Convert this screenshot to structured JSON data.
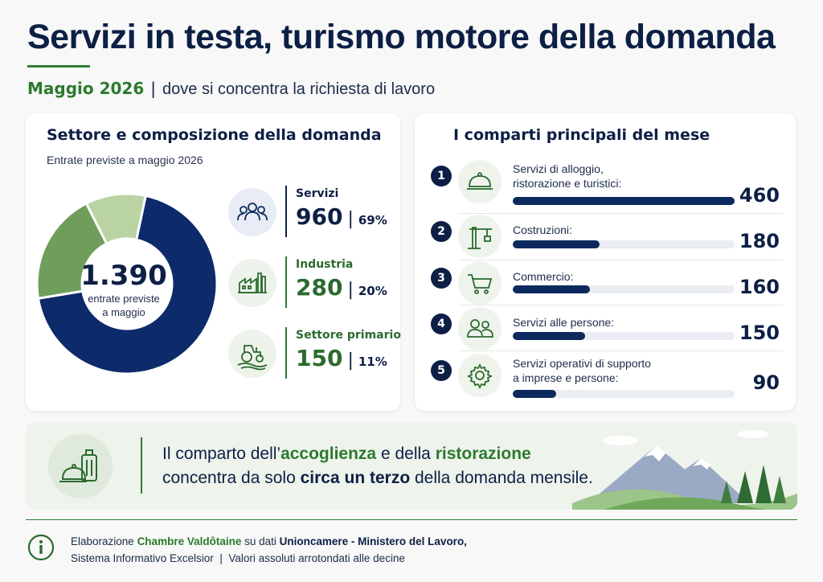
{
  "header": {
    "title": "Servizi in testa, turismo motore della domanda",
    "period": "Maggio 2026",
    "separator": "|",
    "tagline": "dove si concentra la richiesta di lavoro"
  },
  "composition": {
    "title": "Settore e composizione della domanda",
    "subtitle": "Entrate previste a maggio 2026",
    "total_value": "1.390",
    "total_label_line1": "entrate previste",
    "total_label_line2": "a maggio",
    "segments": [
      {
        "name": "Servizi",
        "value": "960",
        "pct": "69%",
        "icon": "people-icon"
      },
      {
        "name": "Industria",
        "value": "280",
        "pct": "20%",
        "icon": "factory-icon"
      },
      {
        "name": "Settore primario",
        "value": "150",
        "pct": "11%",
        "icon": "tractor-icon"
      }
    ]
  },
  "sectors": {
    "title": "I comparti principali del mese",
    "items": [
      {
        "rank": "1",
        "label_line1": "Servizi di alloggio,",
        "label_line2": "ristorazione e turistici:",
        "value": "460",
        "icon": "cloche-icon"
      },
      {
        "rank": "2",
        "label_line1": "Costruzioni:",
        "label_line2": "",
        "value": "180",
        "icon": "crane-icon"
      },
      {
        "rank": "3",
        "label_line1": "Commercio:",
        "label_line2": "",
        "value": "160",
        "icon": "cart-icon"
      },
      {
        "rank": "4",
        "label_line1": "Servizi alle persone:",
        "label_line2": "",
        "value": "150",
        "icon": "persons-icon"
      },
      {
        "rank": "5",
        "label_line1": "Servizi operativi di supporto",
        "label_line2": "a imprese e persone:",
        "value": "90",
        "icon": "gear-icon"
      }
    ]
  },
  "banner": {
    "t1": "Il comparto dell’",
    "t2": "accoglienza",
    "t3": " e della ",
    "t4": "ristorazione",
    "t5": "concentra da solo ",
    "t6": "circa un terzo",
    "t7": " della domanda mensile.",
    "icon": "luggage-icon"
  },
  "footer": {
    "f1": "Elaborazione ",
    "f2": "Chambre Valdôtaine",
    "f3": " su dati ",
    "f4": "Unioncamere - Ministero del Lavoro,",
    "f5": "Sistema Informativo Excelsior",
    "f6": "  |  ",
    "f7": "Valori assoluti arrotondati alle decine",
    "icon": "info-icon"
  },
  "chart_data": [
    {
      "type": "pie",
      "categories": [
        "Servizi",
        "Industria",
        "Settore primario"
      ],
      "values": [
        960,
        280,
        150
      ],
      "percentages": [
        69,
        20,
        11
      ],
      "total": 1390,
      "colors": [
        "#0d2a6b",
        "#6f9e5a",
        "#b9d3a3"
      ]
    },
    {
      "type": "bar",
      "orientation": "horizontal",
      "categories": [
        "Servizi di alloggio, ristorazione e turistici",
        "Costruzioni",
        "Commercio",
        "Servizi alle persone",
        "Servizi operativi di supporto a imprese e persone"
      ],
      "values": [
        460,
        180,
        160,
        150,
        90
      ],
      "xlim": [
        0,
        460
      ],
      "colors": {
        "bar": "#0d2a5e",
        "track": "#eaedf2"
      }
    }
  ]
}
